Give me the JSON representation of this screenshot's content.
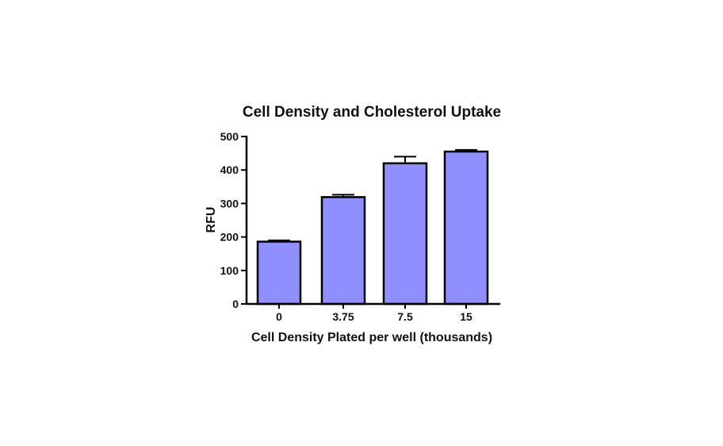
{
  "chart_data": {
    "type": "bar",
    "title": "Cell  Density and Cholesterol  Uptake",
    "xlabel": "Cell Density Plated per well (thousands)",
    "ylabel": "RFU",
    "categories": [
      "0",
      "3.75",
      "7.5",
      "15"
    ],
    "values": [
      186,
      319,
      420,
      455
    ],
    "error_bars": [
      4,
      7,
      20,
      5
    ],
    "ylim": [
      0,
      500
    ],
    "yticks": [
      0,
      100,
      200,
      300,
      400,
      500
    ],
    "grid": false,
    "legend": "none",
    "bar_color": "#8f8fff",
    "bar_stroke": "#000000"
  }
}
